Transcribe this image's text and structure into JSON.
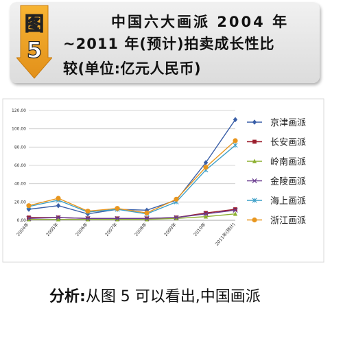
{
  "header": {
    "badge_char_1": "图",
    "badge_char_2": "5",
    "title_line_1": "中国六大画派 2004 年",
    "title_line_2": "~2011 年(预计)拍卖成长性比",
    "title_line_3": "较(单位:亿元人民币)"
  },
  "analysis": {
    "prefix": "分析:",
    "text": "从图 5 可以看出,中国画派"
  },
  "colors": {
    "京津画派": "#3a5fa8",
    "长安画派": "#9c1f2e",
    "岭南画派": "#8db030",
    "金陵画派": "#6a3d8f",
    "海上画派": "#3fa0c8",
    "浙江画派": "#e8961e"
  },
  "chart_data": {
    "type": "line",
    "categories": [
      "2004年",
      "2005年",
      "2006年",
      "2007年",
      "2008年",
      "2009年",
      "2010年",
      "2011年(预计)"
    ],
    "ylim": [
      0,
      120
    ],
    "yticks": [
      "0.00",
      "20.00",
      "40.00",
      "60.00",
      "80.00",
      "100.00",
      "120.00"
    ],
    "grid": true,
    "legend_position": "right",
    "series": [
      {
        "name": "京津画派",
        "marker": "diamond",
        "values": [
          12,
          16,
          7,
          12,
          11,
          22,
          63,
          110
        ]
      },
      {
        "name": "长安画派",
        "marker": "square",
        "values": [
          3,
          3,
          2,
          2,
          2,
          3,
          8,
          12
        ]
      },
      {
        "name": "岭南画派",
        "marker": "triangle",
        "values": [
          1,
          1,
          1,
          1,
          1,
          2,
          4,
          7
        ]
      },
      {
        "name": "金陵画派",
        "marker": "x",
        "values": [
          2,
          3,
          2,
          2,
          2,
          3,
          7,
          11
        ]
      },
      {
        "name": "海上画派",
        "marker": "star",
        "values": [
          15,
          22,
          9,
          12,
          7,
          20,
          55,
          82
        ]
      },
      {
        "name": "浙江画派",
        "marker": "circle",
        "values": [
          16,
          24,
          10,
          13,
          8,
          23,
          58,
          87
        ]
      }
    ]
  }
}
